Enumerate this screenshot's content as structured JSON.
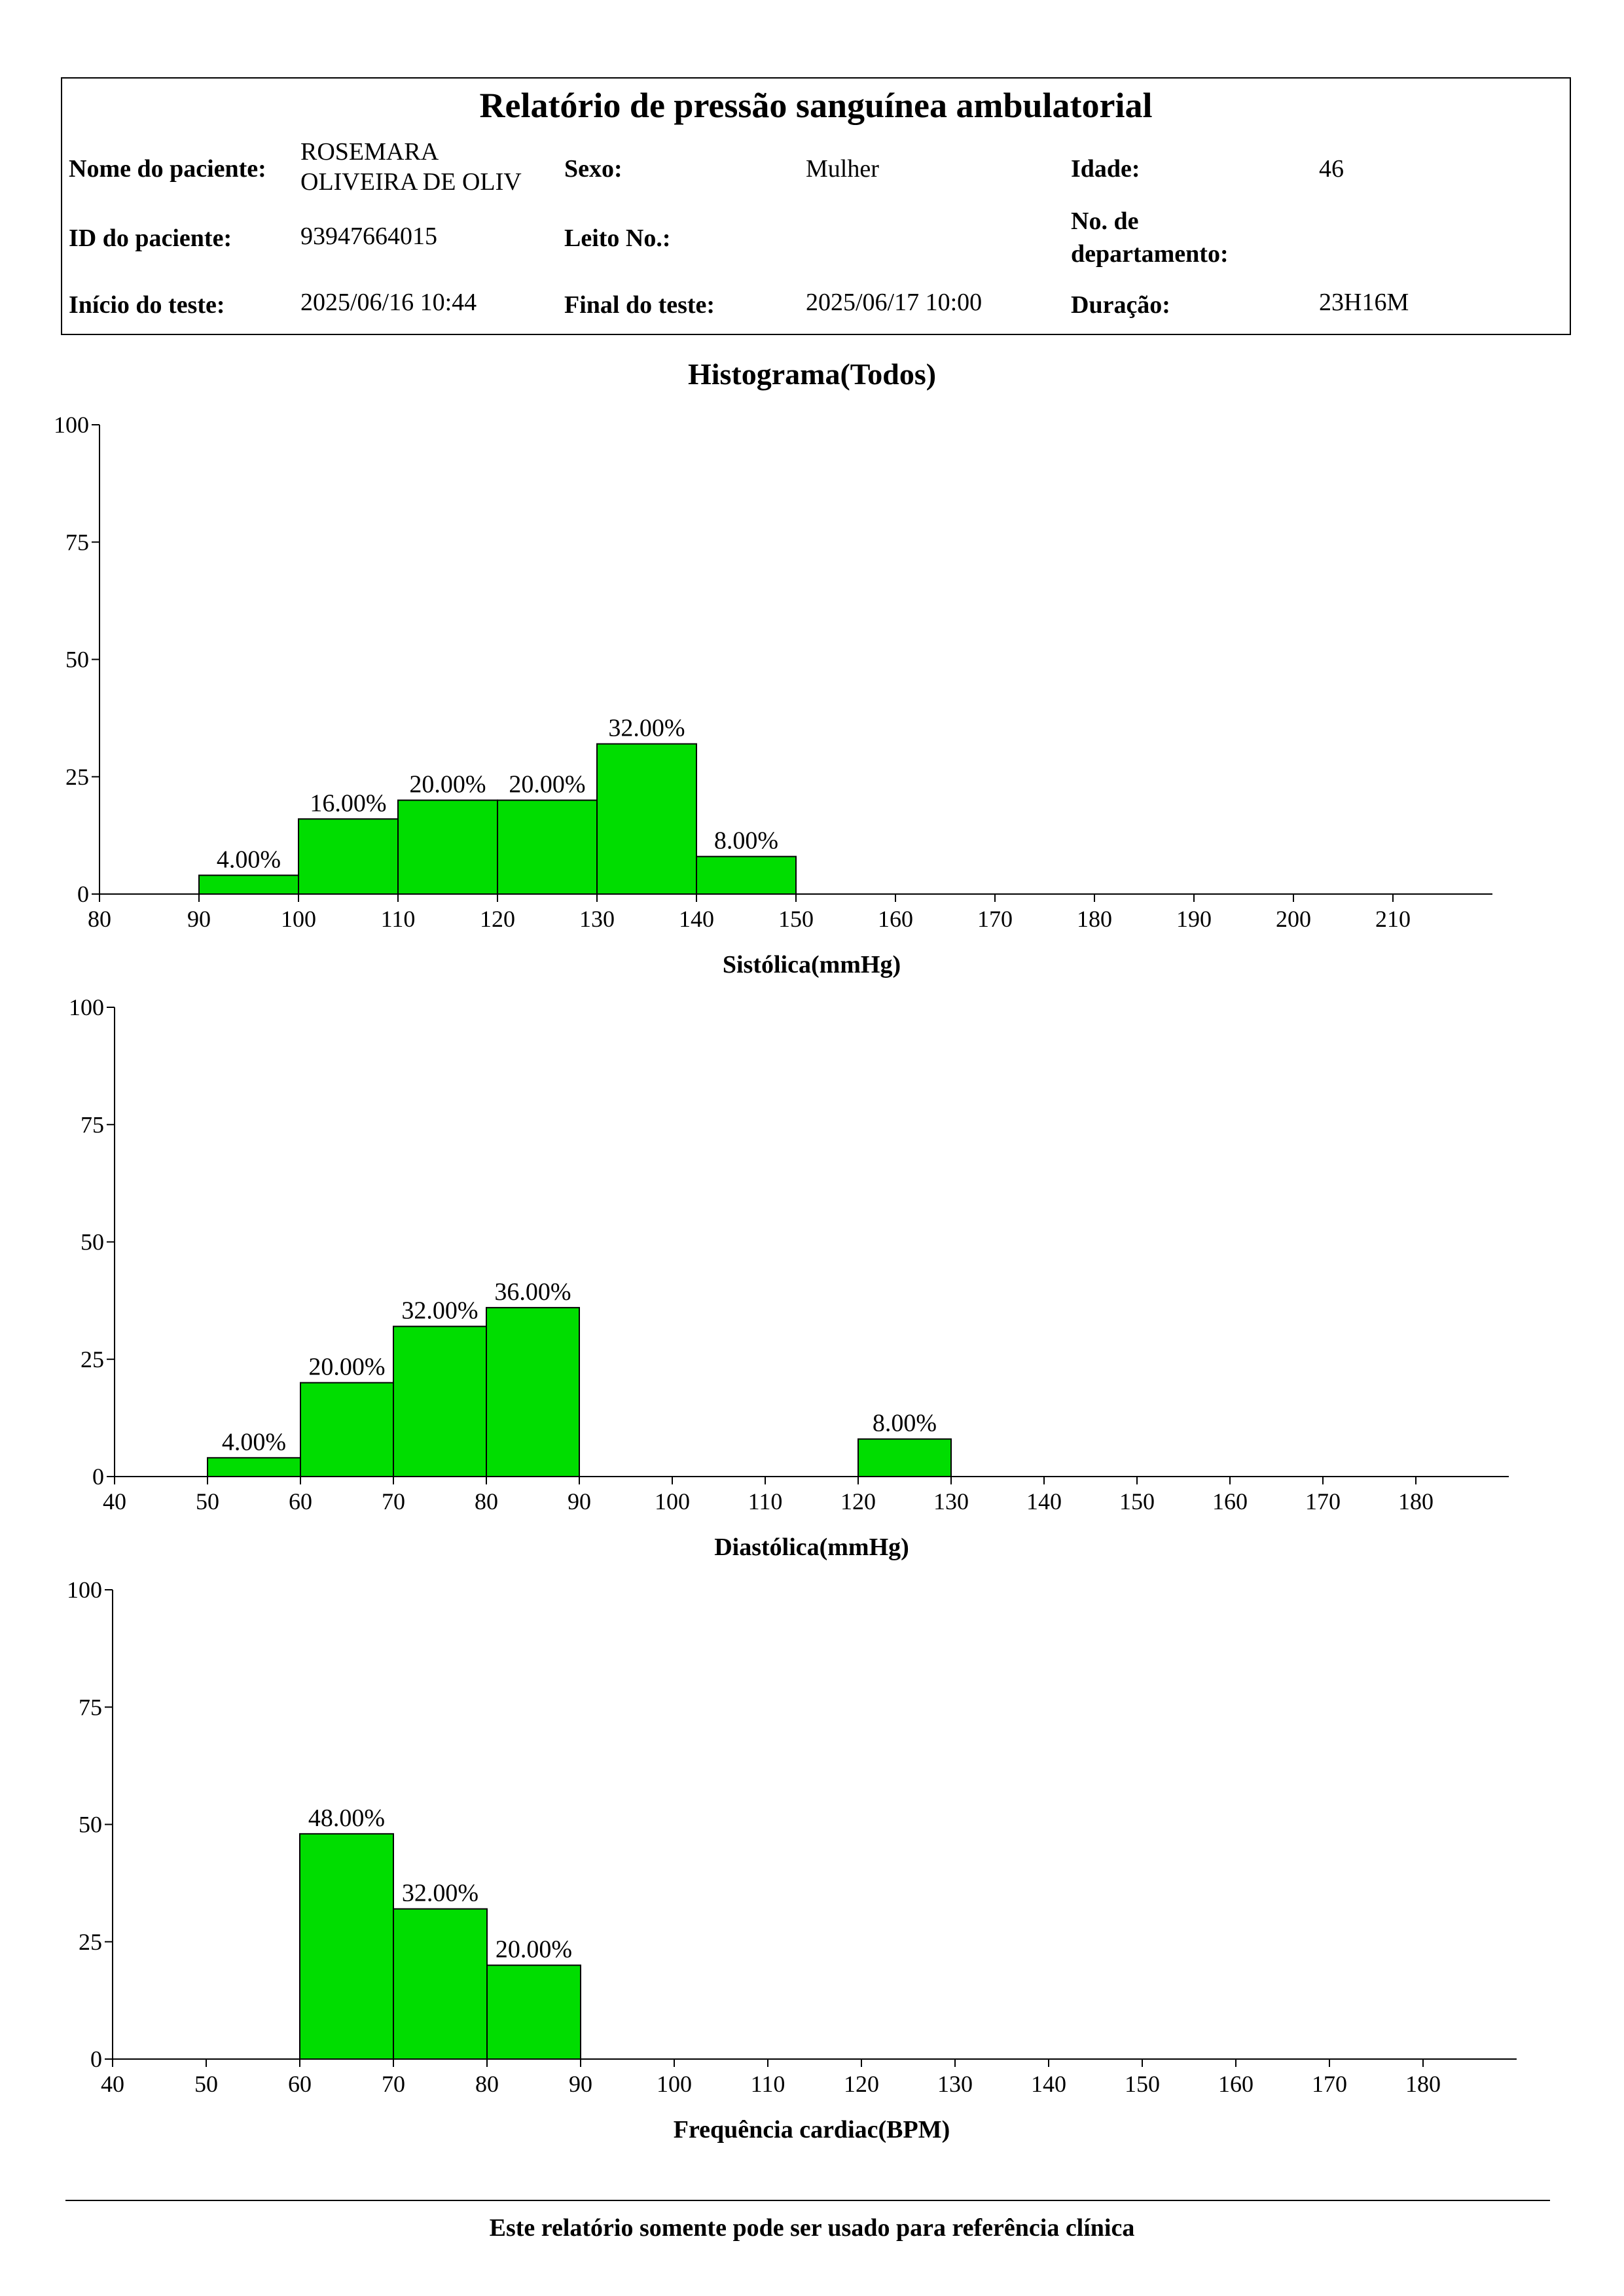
{
  "report": {
    "title": "Relatório de pressão sanguínea ambulatorial",
    "patient_name_label": "Nome do paciente:",
    "patient_name_line1": "ROSEMARA",
    "patient_name_line2": "OLIVEIRA DE OLIV",
    "sex_label": "Sexo:",
    "sex_value": "Mulher",
    "age_label": "Idade:",
    "age_value": "46",
    "patient_id_label": "ID do paciente:",
    "patient_id_value": "93947664015",
    "bed_label": "Leito No.:",
    "bed_value": "",
    "dept_label_line1": "No. de",
    "dept_label_line2": "departamento:",
    "dept_value": "",
    "start_label": "Início do teste:",
    "start_value": "2025/06/16 10:44",
    "end_label": "Final do teste:",
    "end_value": "2025/06/17 10:00",
    "duration_label": "Duração:",
    "duration_value": "23H16M"
  },
  "histogram_title": "Histograma(Todos)",
  "chart_data": [
    {
      "type": "bar",
      "xlabel": "Sistólica(mmHg)",
      "ylabel": "",
      "bar_color": "#00dd00",
      "xlim": [
        80,
        220
      ],
      "x_ticks": [
        80,
        90,
        100,
        110,
        120,
        130,
        140,
        150,
        160,
        170,
        180,
        190,
        200,
        210
      ],
      "ylim": [
        0,
        100
      ],
      "y_ticks": [
        0,
        25,
        50,
        75,
        100
      ],
      "bins": [
        {
          "from": 90,
          "to": 100,
          "value": 4,
          "label": "4.00%"
        },
        {
          "from": 100,
          "to": 110,
          "value": 16,
          "label": "16.00%"
        },
        {
          "from": 110,
          "to": 120,
          "value": 20,
          "label": "20.00%"
        },
        {
          "from": 120,
          "to": 130,
          "value": 20,
          "label": "20.00%"
        },
        {
          "from": 130,
          "to": 140,
          "value": 32,
          "label": "32.00%"
        },
        {
          "from": 140,
          "to": 150,
          "value": 8,
          "label": "8.00%"
        }
      ]
    },
    {
      "type": "bar",
      "xlabel": "Diastólica(mmHg)",
      "ylabel": "",
      "bar_color": "#00dd00",
      "xlim": [
        40,
        190
      ],
      "x_ticks": [
        40,
        50,
        60,
        70,
        80,
        90,
        100,
        110,
        120,
        130,
        140,
        150,
        160,
        170,
        180
      ],
      "ylim": [
        0,
        100
      ],
      "y_ticks": [
        0,
        25,
        50,
        75,
        100
      ],
      "bins": [
        {
          "from": 50,
          "to": 60,
          "value": 4,
          "label": "4.00%"
        },
        {
          "from": 60,
          "to": 70,
          "value": 20,
          "label": "20.00%"
        },
        {
          "from": 70,
          "to": 80,
          "value": 32,
          "label": "32.00%"
        },
        {
          "from": 80,
          "to": 90,
          "value": 36,
          "label": "36.00%"
        },
        {
          "from": 120,
          "to": 130,
          "value": 8,
          "label": "8.00%"
        }
      ]
    },
    {
      "type": "bar",
      "xlabel": "Frequência cardiac(BPM)",
      "ylabel": "",
      "bar_color": "#00dd00",
      "xlim": [
        40,
        190
      ],
      "x_ticks": [
        40,
        50,
        60,
        70,
        80,
        90,
        100,
        110,
        120,
        130,
        140,
        150,
        160,
        170,
        180
      ],
      "ylim": [
        0,
        100
      ],
      "y_ticks": [
        0,
        25,
        50,
        75,
        100
      ],
      "bins": [
        {
          "from": 60,
          "to": 70,
          "value": 48,
          "label": "48.00%"
        },
        {
          "from": 70,
          "to": 80,
          "value": 32,
          "label": "32.00%"
        },
        {
          "from": 80,
          "to": 90,
          "value": 20,
          "label": "20.00%"
        }
      ]
    }
  ],
  "footer": {
    "text": "Este relatório somente pode ser usado para referência clínica"
  }
}
